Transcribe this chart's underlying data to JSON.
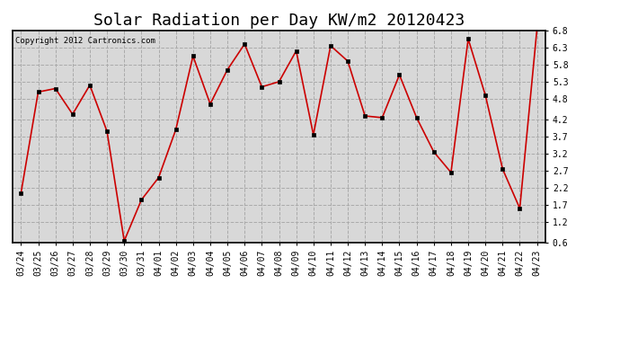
{
  "title": "Solar Radiation per Day KW/m2 20120423",
  "copyright_text": "Copyright 2012 Cartronics.com",
  "dates": [
    "03/24",
    "03/25",
    "03/26",
    "03/27",
    "03/28",
    "03/29",
    "03/30",
    "03/31",
    "04/01",
    "04/02",
    "04/03",
    "04/04",
    "04/05",
    "04/06",
    "04/07",
    "04/08",
    "04/09",
    "04/10",
    "04/11",
    "04/12",
    "04/13",
    "04/14",
    "04/15",
    "04/16",
    "04/17",
    "04/18",
    "04/19",
    "04/20",
    "04/21",
    "04/22",
    "04/23"
  ],
  "values": [
    2.05,
    5.0,
    5.1,
    4.35,
    5.2,
    3.85,
    0.65,
    1.85,
    2.5,
    3.9,
    6.05,
    4.65,
    5.65,
    6.4,
    5.15,
    5.3,
    6.2,
    3.75,
    6.35,
    5.9,
    4.3,
    4.25,
    5.5,
    4.25,
    3.25,
    2.65,
    6.55,
    4.9,
    2.75,
    1.6,
    6.85
  ],
  "line_color": "#cc0000",
  "marker": "s",
  "marker_size": 3,
  "marker_color": "#000000",
  "bg_color": "#ffffff",
  "plot_bg_color": "#d8d8d8",
  "grid_color": "#aaaaaa",
  "ylim": [
    0.6,
    6.8
  ],
  "yticks": [
    0.6,
    1.2,
    1.7,
    2.2,
    2.7,
    3.2,
    3.7,
    4.2,
    4.8,
    5.3,
    5.8,
    6.3,
    6.8
  ],
  "title_fontsize": 13,
  "tick_fontsize": 7,
  "copyright_fontsize": 6.5
}
